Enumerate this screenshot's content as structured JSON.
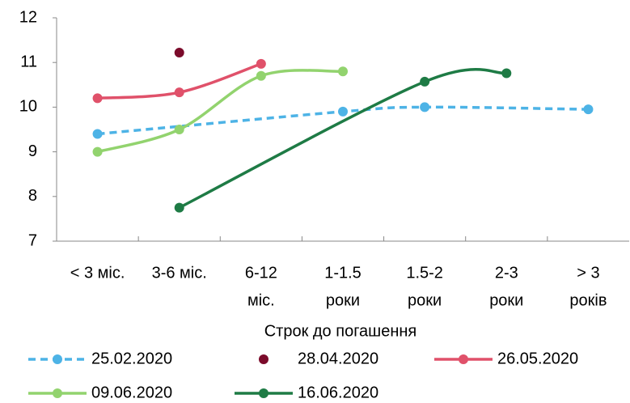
{
  "chart_data": {
    "type": "line",
    "x_label": "Строк до погашення",
    "categories": [
      [
        "< 3 міс."
      ],
      [
        "3-6 міс."
      ],
      [
        "6-12",
        "міс."
      ],
      [
        "1-1.5",
        "роки"
      ],
      [
        "1.5-2",
        "роки"
      ],
      [
        "2-3",
        "роки"
      ],
      [
        "> 3",
        "років"
      ]
    ],
    "ylim": [
      7,
      12
    ],
    "yticks": [
      7,
      8,
      9,
      10,
      11,
      12
    ],
    "grid": false,
    "smooth": true,
    "connect_gaps": true,
    "legend": "bottom",
    "series": [
      {
        "name": "25.02.2020",
        "color": "#4db3e6",
        "dash": true,
        "values": [
          9.4,
          null,
          null,
          9.9,
          10.0,
          null,
          9.95
        ]
      },
      {
        "name": "28.04.2020",
        "color": "#7b0b2b",
        "marker_only": true,
        "values": [
          null,
          11.22,
          null,
          null,
          null,
          null,
          null
        ]
      },
      {
        "name": "26.05.2020",
        "color": "#e0516a",
        "values": [
          10.2,
          10.33,
          10.97,
          null,
          null,
          null,
          null
        ]
      },
      {
        "name": "09.06.2020",
        "color": "#92d36e",
        "values": [
          9.0,
          9.5,
          10.7,
          10.8,
          null,
          null,
          null
        ]
      },
      {
        "name": "16.06.2020",
        "color": "#1e7b45",
        "values": [
          null,
          7.75,
          null,
          null,
          10.57,
          10.76,
          null
        ]
      }
    ]
  }
}
